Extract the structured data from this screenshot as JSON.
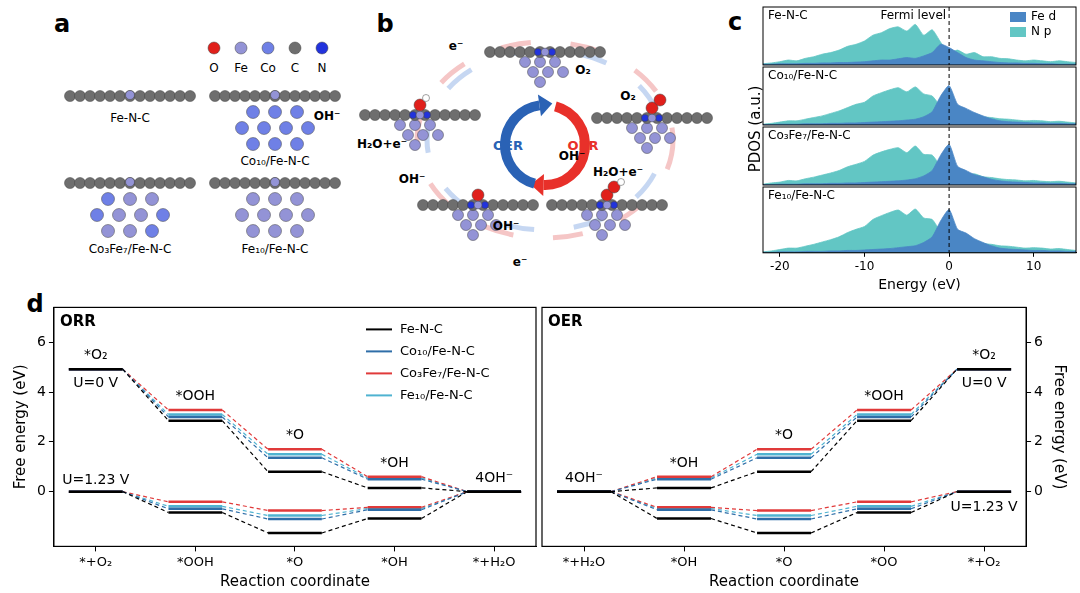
{
  "panel_labels": [
    "a",
    "b",
    "c",
    "d"
  ],
  "panel_a": {
    "atom_legend": [
      {
        "symbol": "O",
        "color": "#e0201b"
      },
      {
        "symbol": "Fe",
        "color": "#9393d6"
      },
      {
        "symbol": "Co",
        "color": "#6f80e6"
      },
      {
        "symbol": "C",
        "color": "#6e6e6e"
      },
      {
        "symbol": "N",
        "color": "#2233dd"
      }
    ],
    "structures": [
      "Fe-N-C",
      "Co₁₀/Fe-N-C",
      "Co₃Fe₇/Fe-N-C",
      "Fe₁₀/Fe-N-C"
    ]
  },
  "panel_b": {
    "center_labels": [
      {
        "text": "OER",
        "color": "#2a62b5"
      },
      {
        "text": "ORR",
        "color": "#e8302a"
      }
    ],
    "labels": [
      "e⁻",
      "O₂",
      "O₂",
      "OH⁻",
      "H₂O+e⁻",
      "OH⁻",
      "e⁻",
      "OH⁻",
      "H₂O+e⁻",
      "OH⁻"
    ]
  },
  "chart_data": [
    {
      "type": "area",
      "title": "Fe-N-C",
      "y_label": "PDOS (a.u.)",
      "legend": "upper right",
      "fermi_level": 0,
      "annotations": [
        {
          "text": "Fermi level",
          "x": 0
        }
      ],
      "x": [
        -22,
        -21,
        -20,
        -19,
        -18,
        -17,
        -16,
        -15,
        -14,
        -13,
        -12,
        -11,
        -10,
        -9,
        -8,
        -7,
        -6,
        -5,
        -4,
        -3,
        -2,
        -1,
        0,
        1,
        2,
        3,
        4,
        5,
        6,
        7,
        8,
        9,
        10,
        11,
        12,
        13,
        14,
        15
      ],
      "series": [
        {
          "name": "Fe d",
          "color": "#4a86c5",
          "values": [
            0.02,
            0.02,
            0.03,
            0.03,
            0.03,
            0.04,
            0.04,
            0.05,
            0.05,
            0.06,
            0.06,
            0.07,
            0.08,
            0.1,
            0.12,
            0.12,
            0.15,
            0.18,
            0.16,
            0.22,
            0.3,
            0.5,
            0.42,
            0.3,
            0.18,
            0.12,
            0.1,
            0.08,
            0.06,
            0.05,
            0.05,
            0.04,
            0.04,
            0.03,
            0.03,
            0.02,
            0.02,
            0.02
          ]
        },
        {
          "name": "N p",
          "color": "#62c6c4",
          "values": [
            0.03,
            0.05,
            0.08,
            0.12,
            0.1,
            0.16,
            0.2,
            0.26,
            0.3,
            0.36,
            0.45,
            0.5,
            0.58,
            0.72,
            0.78,
            0.88,
            0.92,
            0.82,
            0.98,
            0.72,
            0.85,
            0.55,
            0.3,
            0.36,
            0.26,
            0.3,
            0.2,
            0.2,
            0.16,
            0.15,
            0.12,
            0.1,
            0.12,
            0.1,
            0.08,
            0.1,
            0.08,
            0.06
          ]
        }
      ],
      "xlim": [
        -22,
        15
      ],
      "ylim": [
        0,
        1.4
      ],
      "tick_labels": false
    },
    {
      "type": "area",
      "title": "Co₁₀/Fe-N-C",
      "fermi_level": 0,
      "x": [
        -22,
        -21,
        -20,
        -19,
        -18,
        -17,
        -16,
        -15,
        -14,
        -13,
        -12,
        -11,
        -10,
        -9,
        -8,
        -7,
        -6,
        -5,
        -4,
        -3,
        -2,
        -1,
        0,
        1,
        2,
        3,
        4,
        5,
        6,
        7,
        8,
        9,
        10,
        11,
        12,
        13,
        14,
        15
      ],
      "series": [
        {
          "name": "Fe d",
          "color": "#4a86c5",
          "values": [
            0.01,
            0.01,
            0.02,
            0.02,
            0.02,
            0.03,
            0.03,
            0.03,
            0.04,
            0.04,
            0.05,
            0.05,
            0.06,
            0.07,
            0.08,
            0.09,
            0.1,
            0.12,
            0.14,
            0.2,
            0.32,
            0.7,
            0.95,
            0.5,
            0.4,
            0.3,
            0.22,
            0.15,
            0.1,
            0.08,
            0.07,
            0.06,
            0.05,
            0.05,
            0.04,
            0.04,
            0.03,
            0.03
          ]
        },
        {
          "name": "N p",
          "color": "#62c6c4",
          "values": [
            0.02,
            0.04,
            0.07,
            0.1,
            0.1,
            0.14,
            0.18,
            0.22,
            0.28,
            0.34,
            0.42,
            0.5,
            0.55,
            0.7,
            0.78,
            0.85,
            0.9,
            0.8,
            0.92,
            0.75,
            0.7,
            0.45,
            0.3,
            0.3,
            0.25,
            0.28,
            0.2,
            0.18,
            0.15,
            0.14,
            0.12,
            0.1,
            0.11,
            0.1,
            0.08,
            0.09,
            0.07,
            0.05
          ]
        }
      ],
      "xlim": [
        -22,
        15
      ],
      "ylim": [
        0,
        1.4
      ],
      "tick_labels": false
    },
    {
      "type": "area",
      "title": "Co₃Fe₇/Fe-N-C",
      "fermi_level": 0,
      "x": [
        -22,
        -21,
        -20,
        -19,
        -18,
        -17,
        -16,
        -15,
        -14,
        -13,
        -12,
        -11,
        -10,
        -9,
        -8,
        -7,
        -6,
        -5,
        -4,
        -3,
        -2,
        -1,
        0,
        1,
        2,
        3,
        4,
        5,
        6,
        7,
        8,
        9,
        10,
        11,
        12,
        13,
        14,
        15
      ],
      "series": [
        {
          "name": "Fe d",
          "color": "#4a86c5",
          "values": [
            0.01,
            0.01,
            0.02,
            0.02,
            0.02,
            0.03,
            0.03,
            0.03,
            0.04,
            0.04,
            0.05,
            0.05,
            0.06,
            0.07,
            0.08,
            0.09,
            0.1,
            0.12,
            0.15,
            0.22,
            0.35,
            0.72,
            0.98,
            0.45,
            0.35,
            0.25,
            0.2,
            0.14,
            0.1,
            0.08,
            0.07,
            0.06,
            0.05,
            0.05,
            0.04,
            0.04,
            0.03,
            0.03
          ]
        },
        {
          "name": "N p",
          "color": "#62c6c4",
          "values": [
            0.02,
            0.05,
            0.07,
            0.11,
            0.1,
            0.15,
            0.19,
            0.24,
            0.29,
            0.35,
            0.44,
            0.5,
            0.57,
            0.72,
            0.8,
            0.86,
            0.9,
            0.78,
            0.94,
            0.74,
            0.72,
            0.46,
            0.3,
            0.32,
            0.24,
            0.27,
            0.2,
            0.18,
            0.15,
            0.13,
            0.12,
            0.1,
            0.11,
            0.09,
            0.08,
            0.09,
            0.07,
            0.05
          ]
        }
      ],
      "xlim": [
        -22,
        15
      ],
      "ylim": [
        0,
        1.4
      ],
      "tick_labels": false
    },
    {
      "type": "area",
      "title": "Fe₁₀/Fe-N-C",
      "fermi_level": 0,
      "x_label": "Energy (eV)",
      "x": [
        -22,
        -21,
        -20,
        -19,
        -18,
        -17,
        -16,
        -15,
        -14,
        -13,
        -12,
        -11,
        -10,
        -9,
        -8,
        -7,
        -6,
        -5,
        -4,
        -3,
        -2,
        -1,
        0,
        1,
        2,
        3,
        4,
        5,
        6,
        7,
        8,
        9,
        10,
        11,
        12,
        13,
        14,
        15
      ],
      "series": [
        {
          "name": "Fe d",
          "color": "#4a86c5",
          "values": [
            0.01,
            0.01,
            0.02,
            0.02,
            0.02,
            0.03,
            0.03,
            0.03,
            0.04,
            0.04,
            0.05,
            0.05,
            0.06,
            0.07,
            0.08,
            0.09,
            0.11,
            0.13,
            0.15,
            0.22,
            0.34,
            0.68,
            0.92,
            0.5,
            0.42,
            0.3,
            0.22,
            0.15,
            0.1,
            0.08,
            0.07,
            0.06,
            0.05,
            0.05,
            0.04,
            0.04,
            0.03,
            0.03
          ]
        },
        {
          "name": "N p",
          "color": "#62c6c4",
          "values": [
            0.02,
            0.04,
            0.07,
            0.1,
            0.1,
            0.14,
            0.18,
            0.23,
            0.28,
            0.34,
            0.43,
            0.5,
            0.56,
            0.71,
            0.79,
            0.86,
            0.91,
            0.8,
            0.93,
            0.74,
            0.71,
            0.45,
            0.3,
            0.31,
            0.25,
            0.28,
            0.2,
            0.18,
            0.15,
            0.14,
            0.12,
            0.1,
            0.11,
            0.1,
            0.08,
            0.09,
            0.07,
            0.05
          ]
        }
      ],
      "xlim": [
        -22,
        15
      ],
      "xticks": [
        -20,
        -10,
        0,
        10
      ],
      "ylim": [
        0,
        1.4
      ],
      "tick_labels": "x"
    },
    {
      "type": "line",
      "title": "ORR",
      "x_label": "Reaction coordinate",
      "y_label": "Free energy (eV)",
      "legend": "upper right",
      "categories": [
        "*+O₂",
        "*OOH",
        "*O",
        "*OH",
        "*+H₂O"
      ],
      "state_labels": [
        "*O₂",
        "*OOH",
        "*O",
        "*OH",
        "4OH⁻"
      ],
      "potentials": [
        "U=0 V",
        "U=1.23 V"
      ],
      "series": [
        {
          "name": "Fe-N-C",
          "color": "#000000",
          "values": [
            [
              4.92,
              2.85,
              0.8,
              0.15,
              0
            ],
            [
              0,
              -0.84,
              -1.66,
              -1.08,
              0
            ]
          ]
        },
        {
          "name": "Co₁₀/Fe-N-C",
          "color": "#2f6ea8",
          "values": [
            [
              4.92,
              3.0,
              1.36,
              0.5,
              0
            ],
            [
              0,
              -0.69,
              -1.1,
              -0.73,
              0
            ]
          ]
        },
        {
          "name": "Co₃Fe₇/Fe-N-C",
          "color": "#e03a3a",
          "values": [
            [
              4.92,
              3.28,
              1.7,
              0.6,
              0
            ],
            [
              0,
              -0.41,
              -0.76,
              -0.63,
              0
            ]
          ]
        },
        {
          "name": "Fe₁₀/Fe-N-C",
          "color": "#4fb3d1",
          "values": [
            [
              4.92,
              3.1,
              1.5,
              0.55,
              0
            ],
            [
              0,
              -0.59,
              -0.96,
              -0.68,
              0
            ]
          ]
        }
      ],
      "ylim": [
        -2.2,
        7.4
      ],
      "yticks": [
        0,
        2,
        4,
        6
      ]
    },
    {
      "type": "line",
      "title": "OER",
      "x_label": "Reaction coordinate",
      "y_label": "Free energy (eV)",
      "categories": [
        "*+H₂O",
        "*OH",
        "*O",
        "*OO",
        "*+O₂"
      ],
      "state_labels": [
        "4OH⁻",
        "*OH",
        "*O",
        "*OOH",
        "*O₂"
      ],
      "potentials": [
        "U=0 V",
        "U=1.23 V"
      ],
      "series": [
        {
          "name": "Fe-N-C",
          "color": "#000000",
          "values": [
            [
              0,
              0.15,
              0.8,
              2.85,
              4.92
            ],
            [
              0,
              -1.08,
              -1.66,
              -0.84,
              0
            ]
          ]
        },
        {
          "name": "Co₁₀/Fe-N-C",
          "color": "#2f6ea8",
          "values": [
            [
              0,
              0.5,
              1.36,
              3.0,
              4.92
            ],
            [
              0,
              -0.73,
              -1.1,
              -0.69,
              0
            ]
          ]
        },
        {
          "name": "Co₃Fe₇/Fe-N-C",
          "color": "#e03a3a",
          "values": [
            [
              0,
              0.6,
              1.7,
              3.28,
              4.92
            ],
            [
              0,
              -0.63,
              -0.76,
              -0.41,
              0
            ]
          ]
        },
        {
          "name": "Fe₁₀/Fe-N-C",
          "color": "#4fb3d1",
          "values": [
            [
              0,
              0.55,
              1.5,
              3.1,
              4.92
            ],
            [
              0,
              -0.68,
              -0.96,
              -0.59,
              0
            ]
          ]
        }
      ],
      "ylim": [
        -2.2,
        7.4
      ],
      "yticks": [
        0,
        2,
        4,
        6
      ]
    }
  ]
}
